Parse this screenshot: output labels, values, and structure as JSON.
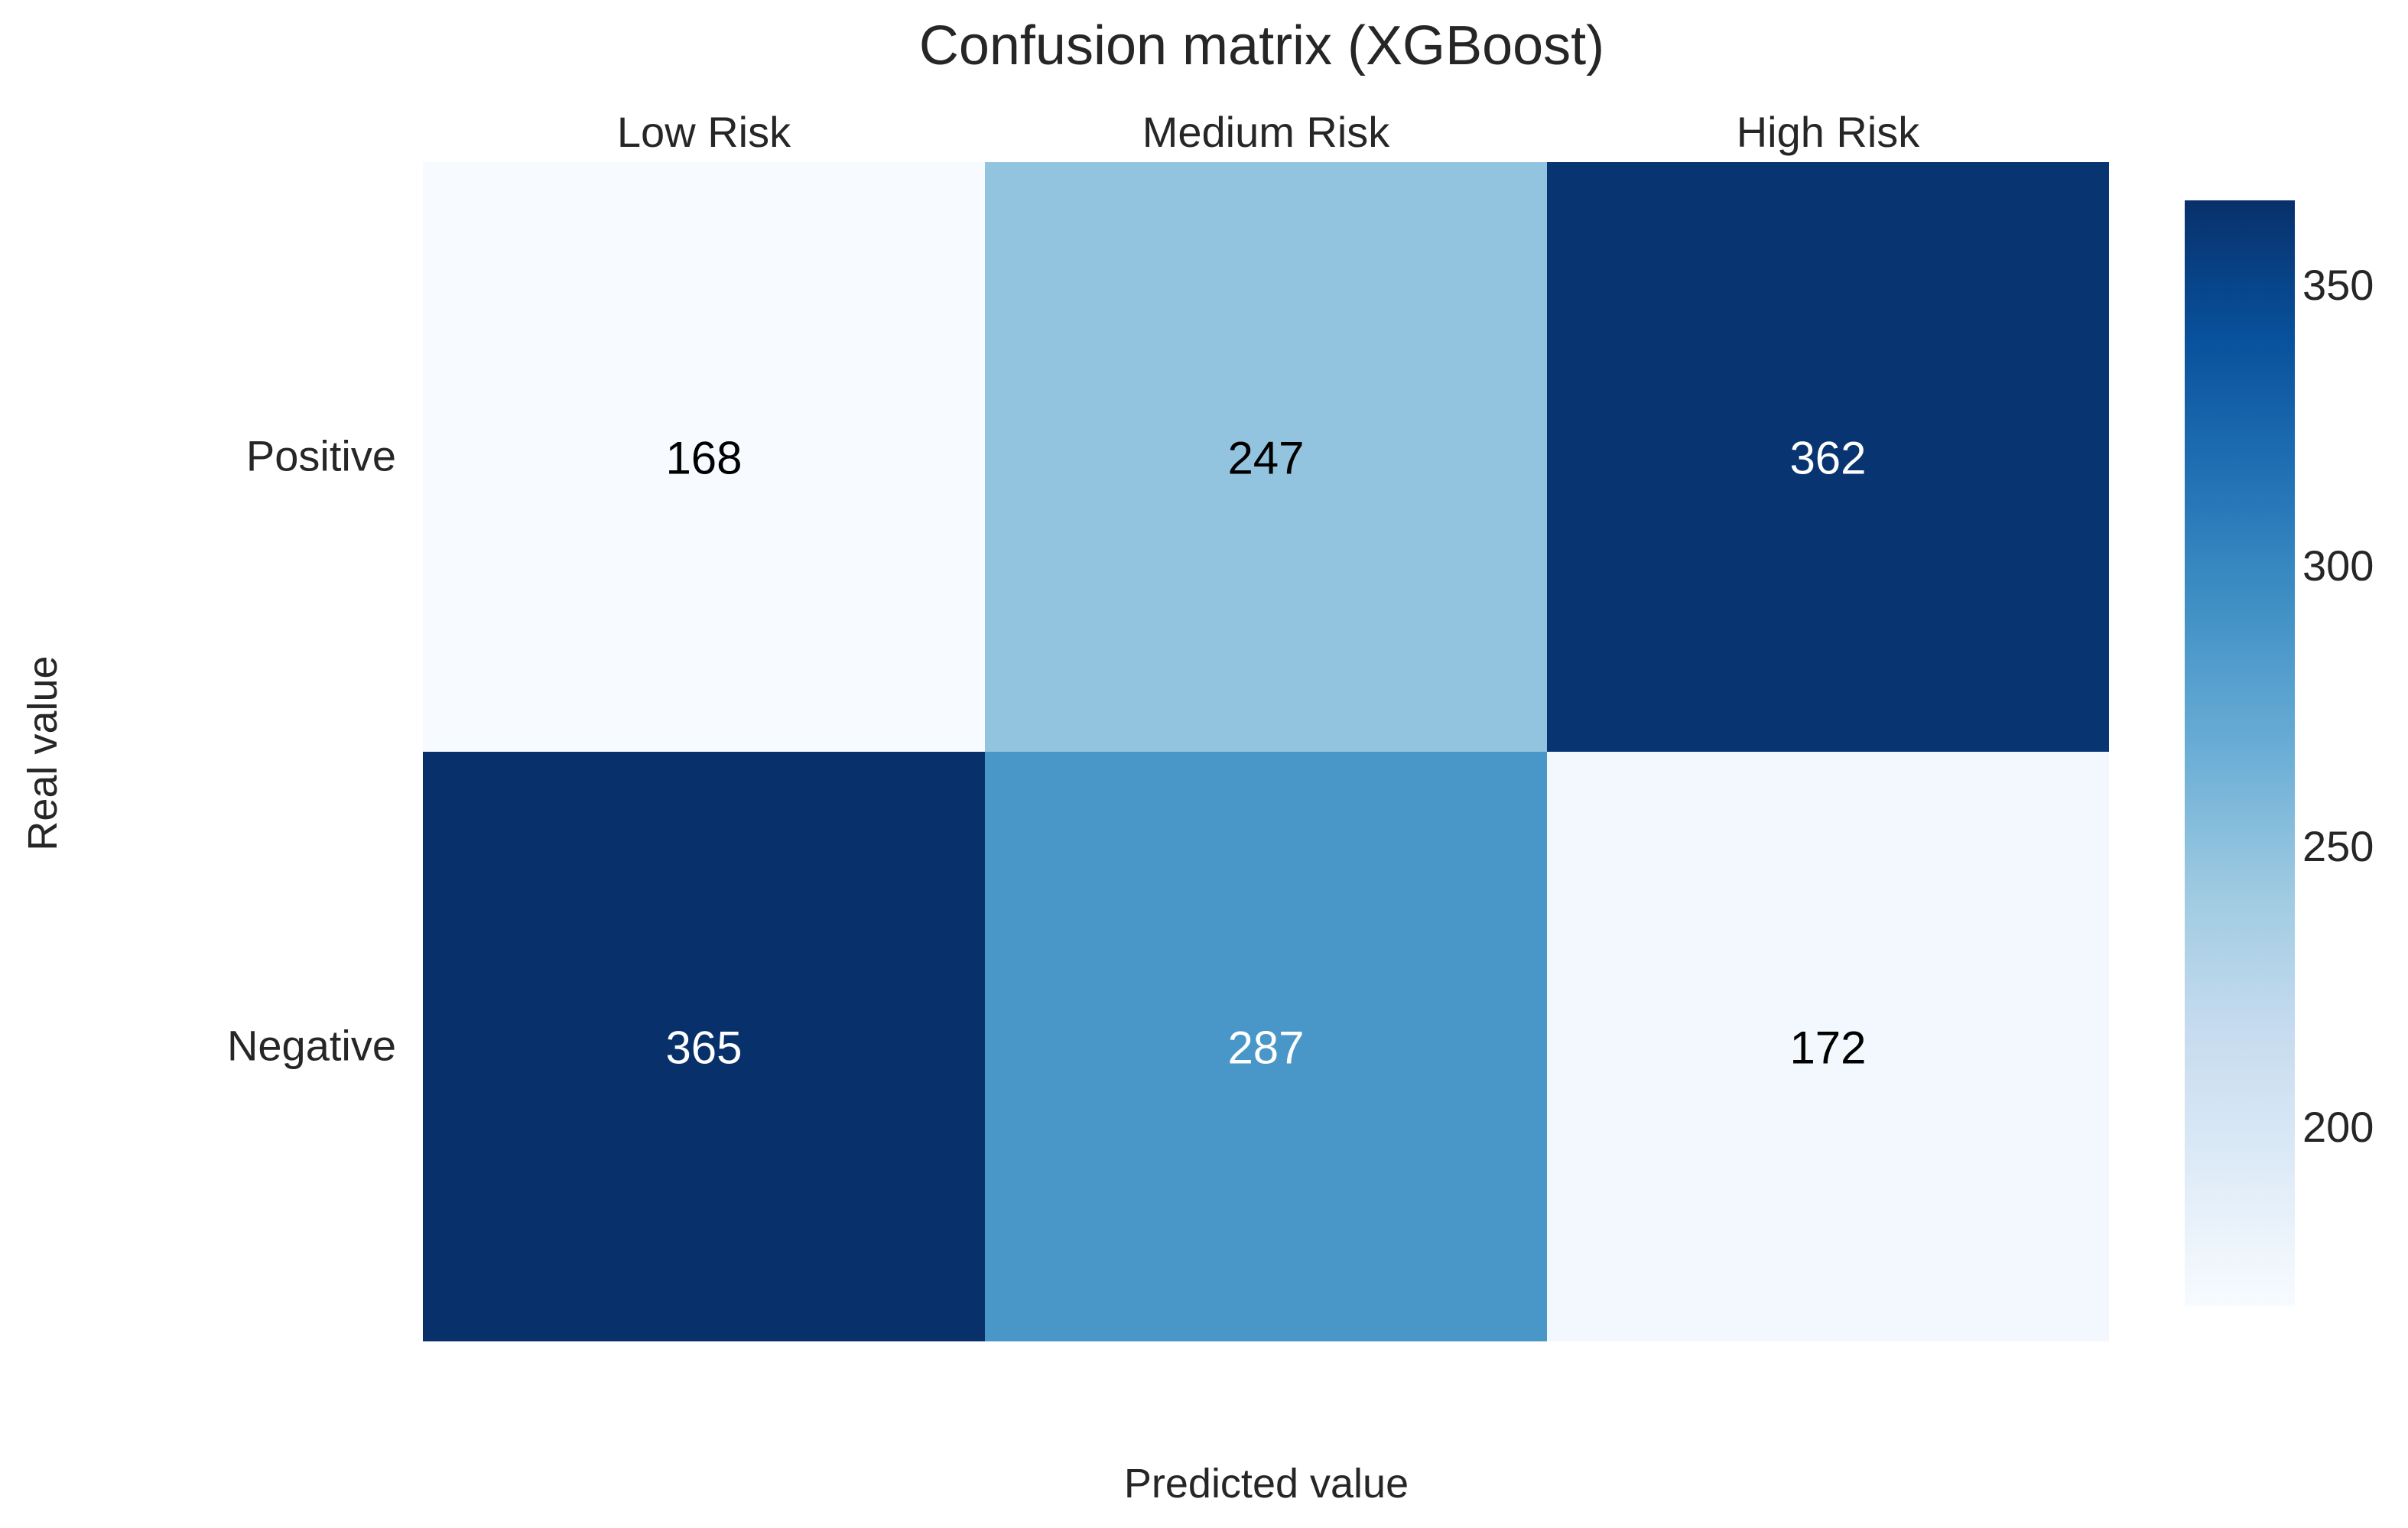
{
  "chart_data": {
    "type": "heatmap",
    "title": "Confusion matrix (XGBoost)",
    "xlabel": "Predicted value",
    "ylabel": "Real value",
    "columns": [
      "Low Risk",
      "Medium Risk",
      "High Risk"
    ],
    "rows": [
      "Positive",
      "Negative"
    ],
    "values": [
      [
        168,
        247,
        362
      ],
      [
        365,
        287,
        172
      ]
    ],
    "colorbar": {
      "range": [
        168,
        365
      ],
      "ticks": [
        200,
        250,
        300,
        350
      ],
      "colormap": "Blues"
    }
  }
}
